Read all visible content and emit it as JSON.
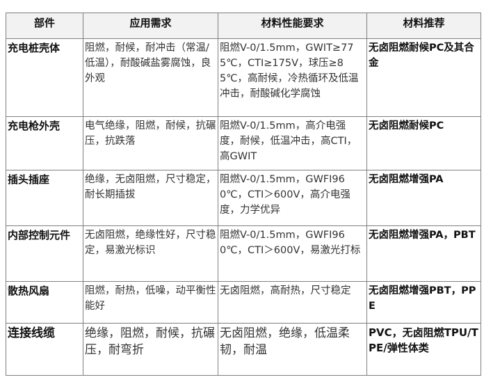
{
  "headers": [
    "部件",
    "应用需求",
    "材料性能要求",
    "材料推荐"
  ],
  "rows": [
    {
      "part": "充电桩壳体",
      "requirement": "阻燃，耐候，耐冲击（常温/低温），耐酸碱盐雾腐蚀，良外观",
      "performance": "阻燃V-0/1.5mm，GWIT≥775℃，CTI≥175V，球压≥85℃，高耐候，冷热循环及低温冲击，耐酸碱化学腐蚀",
      "material": "无卤阻燃耐候PC及其合金"
    },
    {
      "part": "充电枪外壳",
      "requirement": "电气绝缘，阻燃，耐候，抗碾压，抗跌落",
      "performance": "阻燃V-0/1.5mm，高介电强度，耐候，低温冲击，高CTI，高GWIT",
      "material": "无卤阻燃耐候PC"
    },
    {
      "part": "插头插座",
      "requirement": "绝缘，无卤阻燃，尺寸稳定，耐长期插拔",
      "performance": "阻燃V-0/1.5mm，GWFI960℃，CTI＞600V，高介电强度，力学优异",
      "material": "无卤阻燃增强PA"
    },
    {
      "part": "内部控制元件",
      "requirement": "无卤阻燃，绝缘性好，尺寸稳定，易激光标识",
      "performance": "阻燃V-0/1.5mm，GWFI960℃，CTI＞600V，易激光打标",
      "material": "无卤阻燃增强PA，PBT"
    },
    {
      "part": "散热风扇",
      "requirement": "阻燃，耐热，低噪，动平衡性能好",
      "performance": "无卤阻燃，高耐热，尺寸稳定",
      "material": "无卤阻燃增强PBT，PPE"
    },
    {
      "part": "连接线缆",
      "requirement": "绝缘，阻燃，耐候，抗碾压，耐弯折",
      "performance": "无卤阻燃，绝缘，低温柔韧，耐温",
      "material": "PVC，无卤阻燃TPU/TPE/弹性体类"
    }
  ]
}
